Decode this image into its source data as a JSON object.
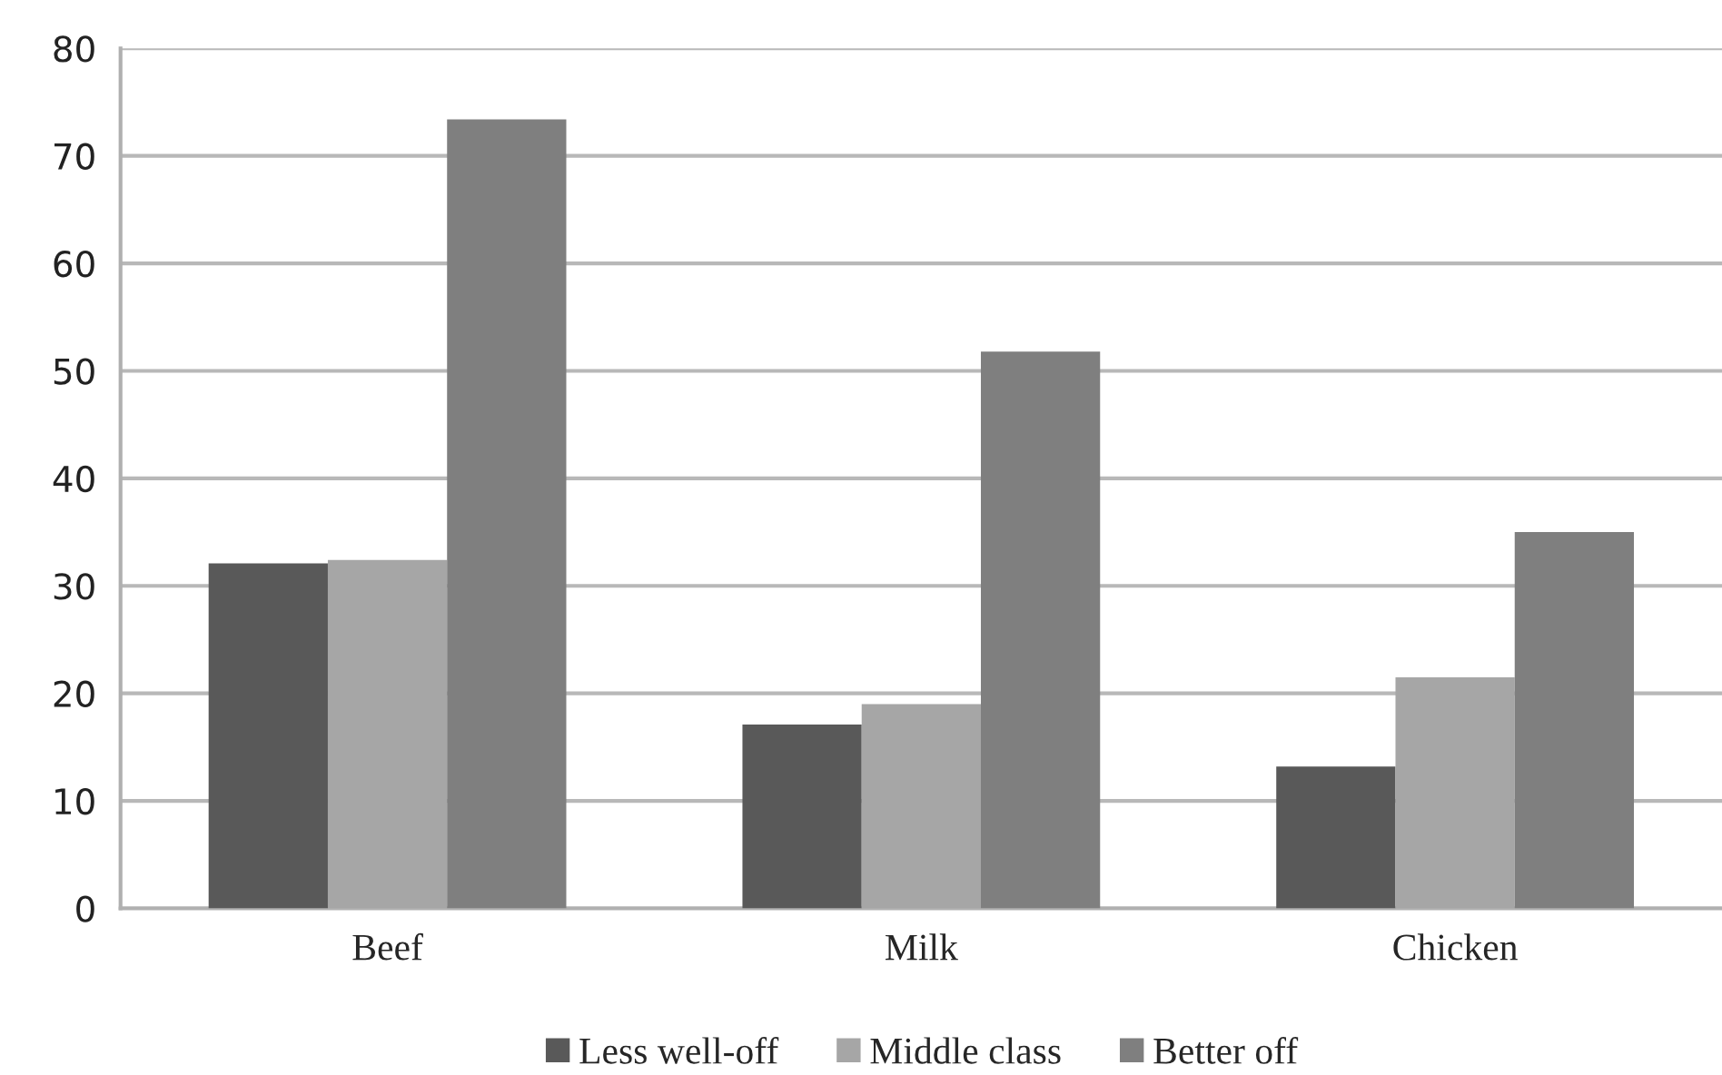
{
  "chart_data": {
    "type": "bar",
    "categories": [
      "Beef",
      "Milk",
      "Chicken"
    ],
    "series": [
      {
        "name": "Less well-off",
        "color": "#595959",
        "values": [
          32.1,
          17.1,
          13.2
        ]
      },
      {
        "name": "Middle class",
        "color": "#a6a6a6",
        "values": [
          32.4,
          19.0,
          21.5
        ]
      },
      {
        "name": "Better off",
        "color": "#7f7f7f",
        "values": [
          73.4,
          51.8,
          35.0
        ]
      }
    ],
    "ylim": [
      0,
      80
    ],
    "yticks": [
      0,
      10,
      20,
      30,
      40,
      50,
      60,
      70,
      80
    ],
    "grid": "y",
    "legend": "bottom"
  }
}
